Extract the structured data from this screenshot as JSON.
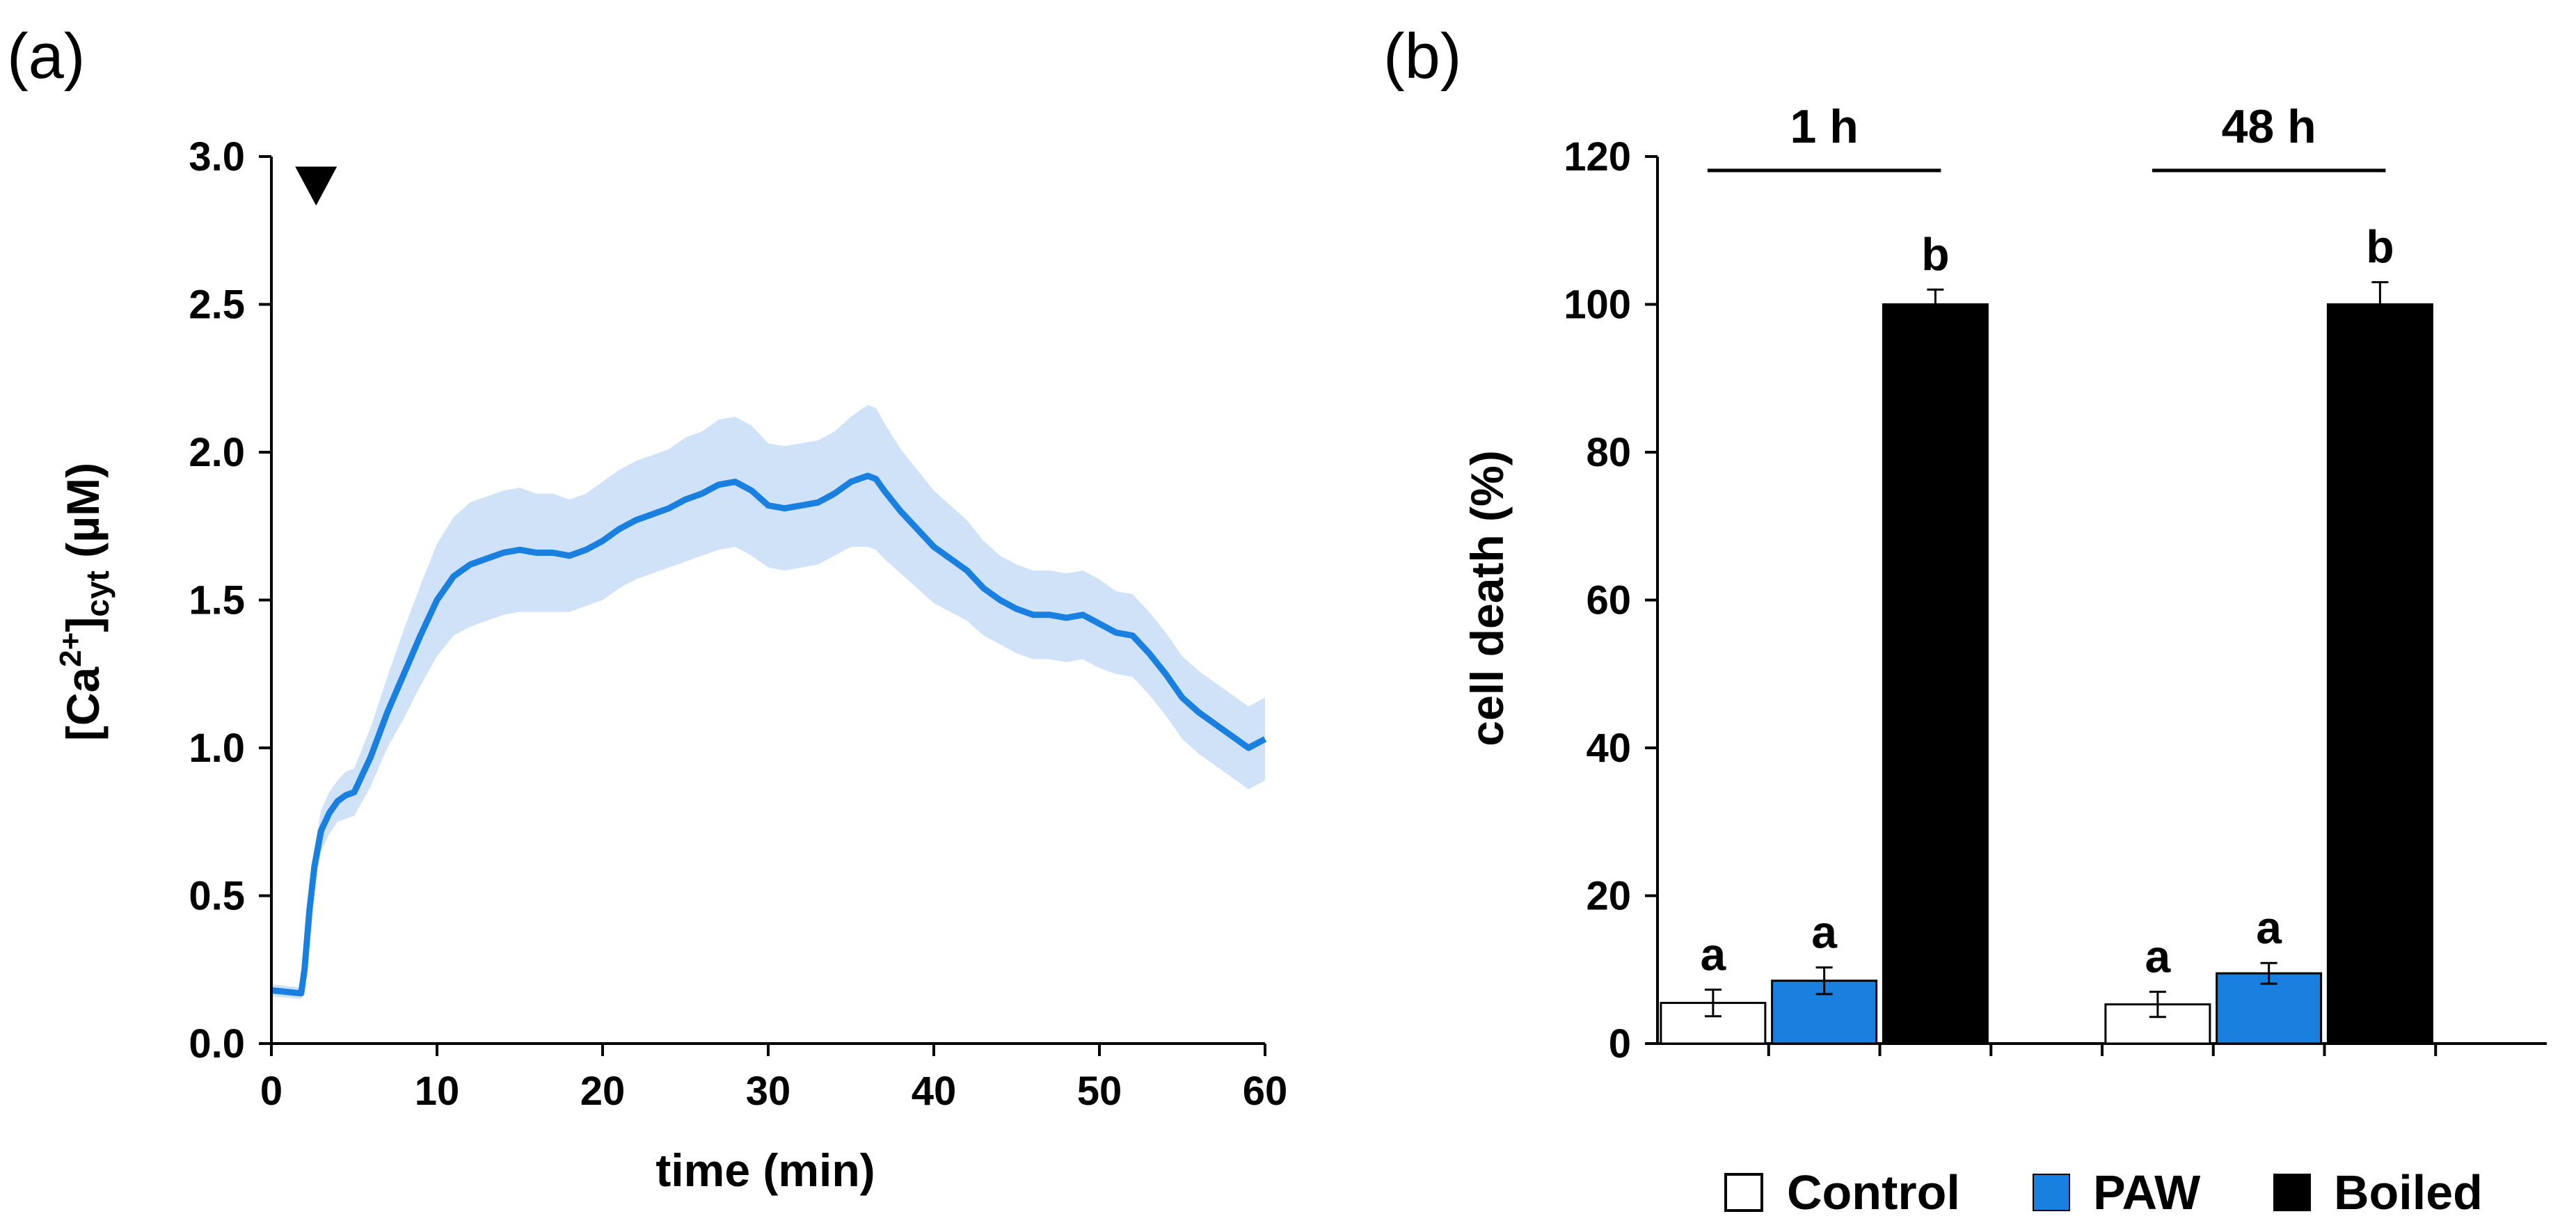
{
  "colors": {
    "series": "#1a80e0",
    "band": "#cfe2f8",
    "boiled": "#000000",
    "control": "#ffffff",
    "axis": "#000000"
  },
  "chart_data": [
    {
      "panel": "(a)",
      "type": "line",
      "ylabel": {
        "prefix": "[Ca",
        "sup": "2+",
        "close": "]",
        "sub": "cyt",
        "suffix": " (µM)"
      },
      "xlabel": "time (min)",
      "xlim": [
        0,
        60
      ],
      "ylim": [
        0,
        3.0
      ],
      "xticks": [
        "0",
        "10",
        "20",
        "30",
        "40",
        "50",
        "60"
      ],
      "yticks": [
        "0.0",
        "0.5",
        "1.0",
        "1.5",
        "2.0",
        "2.5",
        "3.0"
      ],
      "marker": {
        "type": "triangle-down",
        "x": 2.7,
        "y": 2.9,
        "meaning": "treatment added"
      },
      "series": {
        "name": "mean",
        "x": [
          0,
          1.8,
          2.0,
          2.3,
          2.6,
          3.0,
          3.5,
          4.0,
          4.5,
          5.0,
          6.0,
          7.0,
          8.0,
          9.0,
          10.0,
          11.0,
          12.0,
          13.0,
          14.0,
          15.0,
          16.0,
          17.0,
          18.0,
          19.0,
          20.0,
          21.0,
          22.0,
          23.0,
          24.0,
          25.0,
          26.0,
          27.0,
          28.0,
          29.0,
          30.0,
          31.0,
          32.0,
          33.0,
          34.0,
          35.0,
          36.0,
          36.5,
          37.0,
          38.0,
          39.0,
          40.0,
          41.0,
          42.0,
          43.0,
          44.0,
          45.0,
          46.0,
          47.0,
          48.0,
          49.0,
          50.0,
          51.0,
          52.0,
          53.0,
          54.0,
          55.0,
          56.0,
          57.0,
          58.0,
          59.0,
          60.0
        ],
        "mean": [
          0.18,
          0.17,
          0.25,
          0.45,
          0.6,
          0.72,
          0.78,
          0.82,
          0.84,
          0.85,
          0.97,
          1.12,
          1.25,
          1.38,
          1.5,
          1.58,
          1.62,
          1.64,
          1.66,
          1.67,
          1.66,
          1.66,
          1.65,
          1.67,
          1.7,
          1.74,
          1.77,
          1.79,
          1.81,
          1.84,
          1.86,
          1.89,
          1.9,
          1.87,
          1.82,
          1.81,
          1.82,
          1.83,
          1.86,
          1.9,
          1.92,
          1.91,
          1.87,
          1.8,
          1.74,
          1.68,
          1.64,
          1.6,
          1.54,
          1.5,
          1.47,
          1.45,
          1.45,
          1.44,
          1.45,
          1.42,
          1.39,
          1.38,
          1.32,
          1.25,
          1.17,
          1.12,
          1.08,
          1.04,
          1.0,
          1.03
        ],
        "sd": [
          0.02,
          0.02,
          0.03,
          0.05,
          0.06,
          0.07,
          0.07,
          0.07,
          0.08,
          0.08,
          0.1,
          0.12,
          0.15,
          0.17,
          0.19,
          0.2,
          0.21,
          0.21,
          0.21,
          0.21,
          0.2,
          0.2,
          0.19,
          0.19,
          0.2,
          0.2,
          0.2,
          0.2,
          0.2,
          0.21,
          0.21,
          0.22,
          0.22,
          0.22,
          0.21,
          0.21,
          0.21,
          0.21,
          0.21,
          0.22,
          0.24,
          0.24,
          0.23,
          0.21,
          0.2,
          0.19,
          0.18,
          0.17,
          0.16,
          0.15,
          0.15,
          0.15,
          0.15,
          0.15,
          0.15,
          0.15,
          0.14,
          0.14,
          0.14,
          0.14,
          0.14,
          0.14,
          0.14,
          0.14,
          0.14,
          0.14
        ]
      }
    },
    {
      "panel": "(b)",
      "type": "bar",
      "ylabel": "cell death (%)",
      "ylim": [
        0,
        120
      ],
      "yticks": [
        "0",
        "20",
        "40",
        "60",
        "80",
        "100",
        "120"
      ],
      "groups": [
        "1 h",
        "48 h"
      ],
      "series": [
        {
          "name": "Control",
          "values": [
            5.5,
            5.3
          ],
          "errors": [
            1.8,
            1.7
          ],
          "letters": [
            "a",
            "a"
          ]
        },
        {
          "name": "PAW",
          "values": [
            8.5,
            9.5
          ],
          "errors": [
            1.8,
            1.4
          ],
          "letters": [
            "a",
            "a"
          ]
        },
        {
          "name": "Boiled",
          "values": [
            100,
            100
          ],
          "errors": [
            2.0,
            3.0
          ],
          "letters": [
            "b",
            "b"
          ]
        }
      ],
      "legend": {
        "placement": "bottom"
      }
    }
  ]
}
